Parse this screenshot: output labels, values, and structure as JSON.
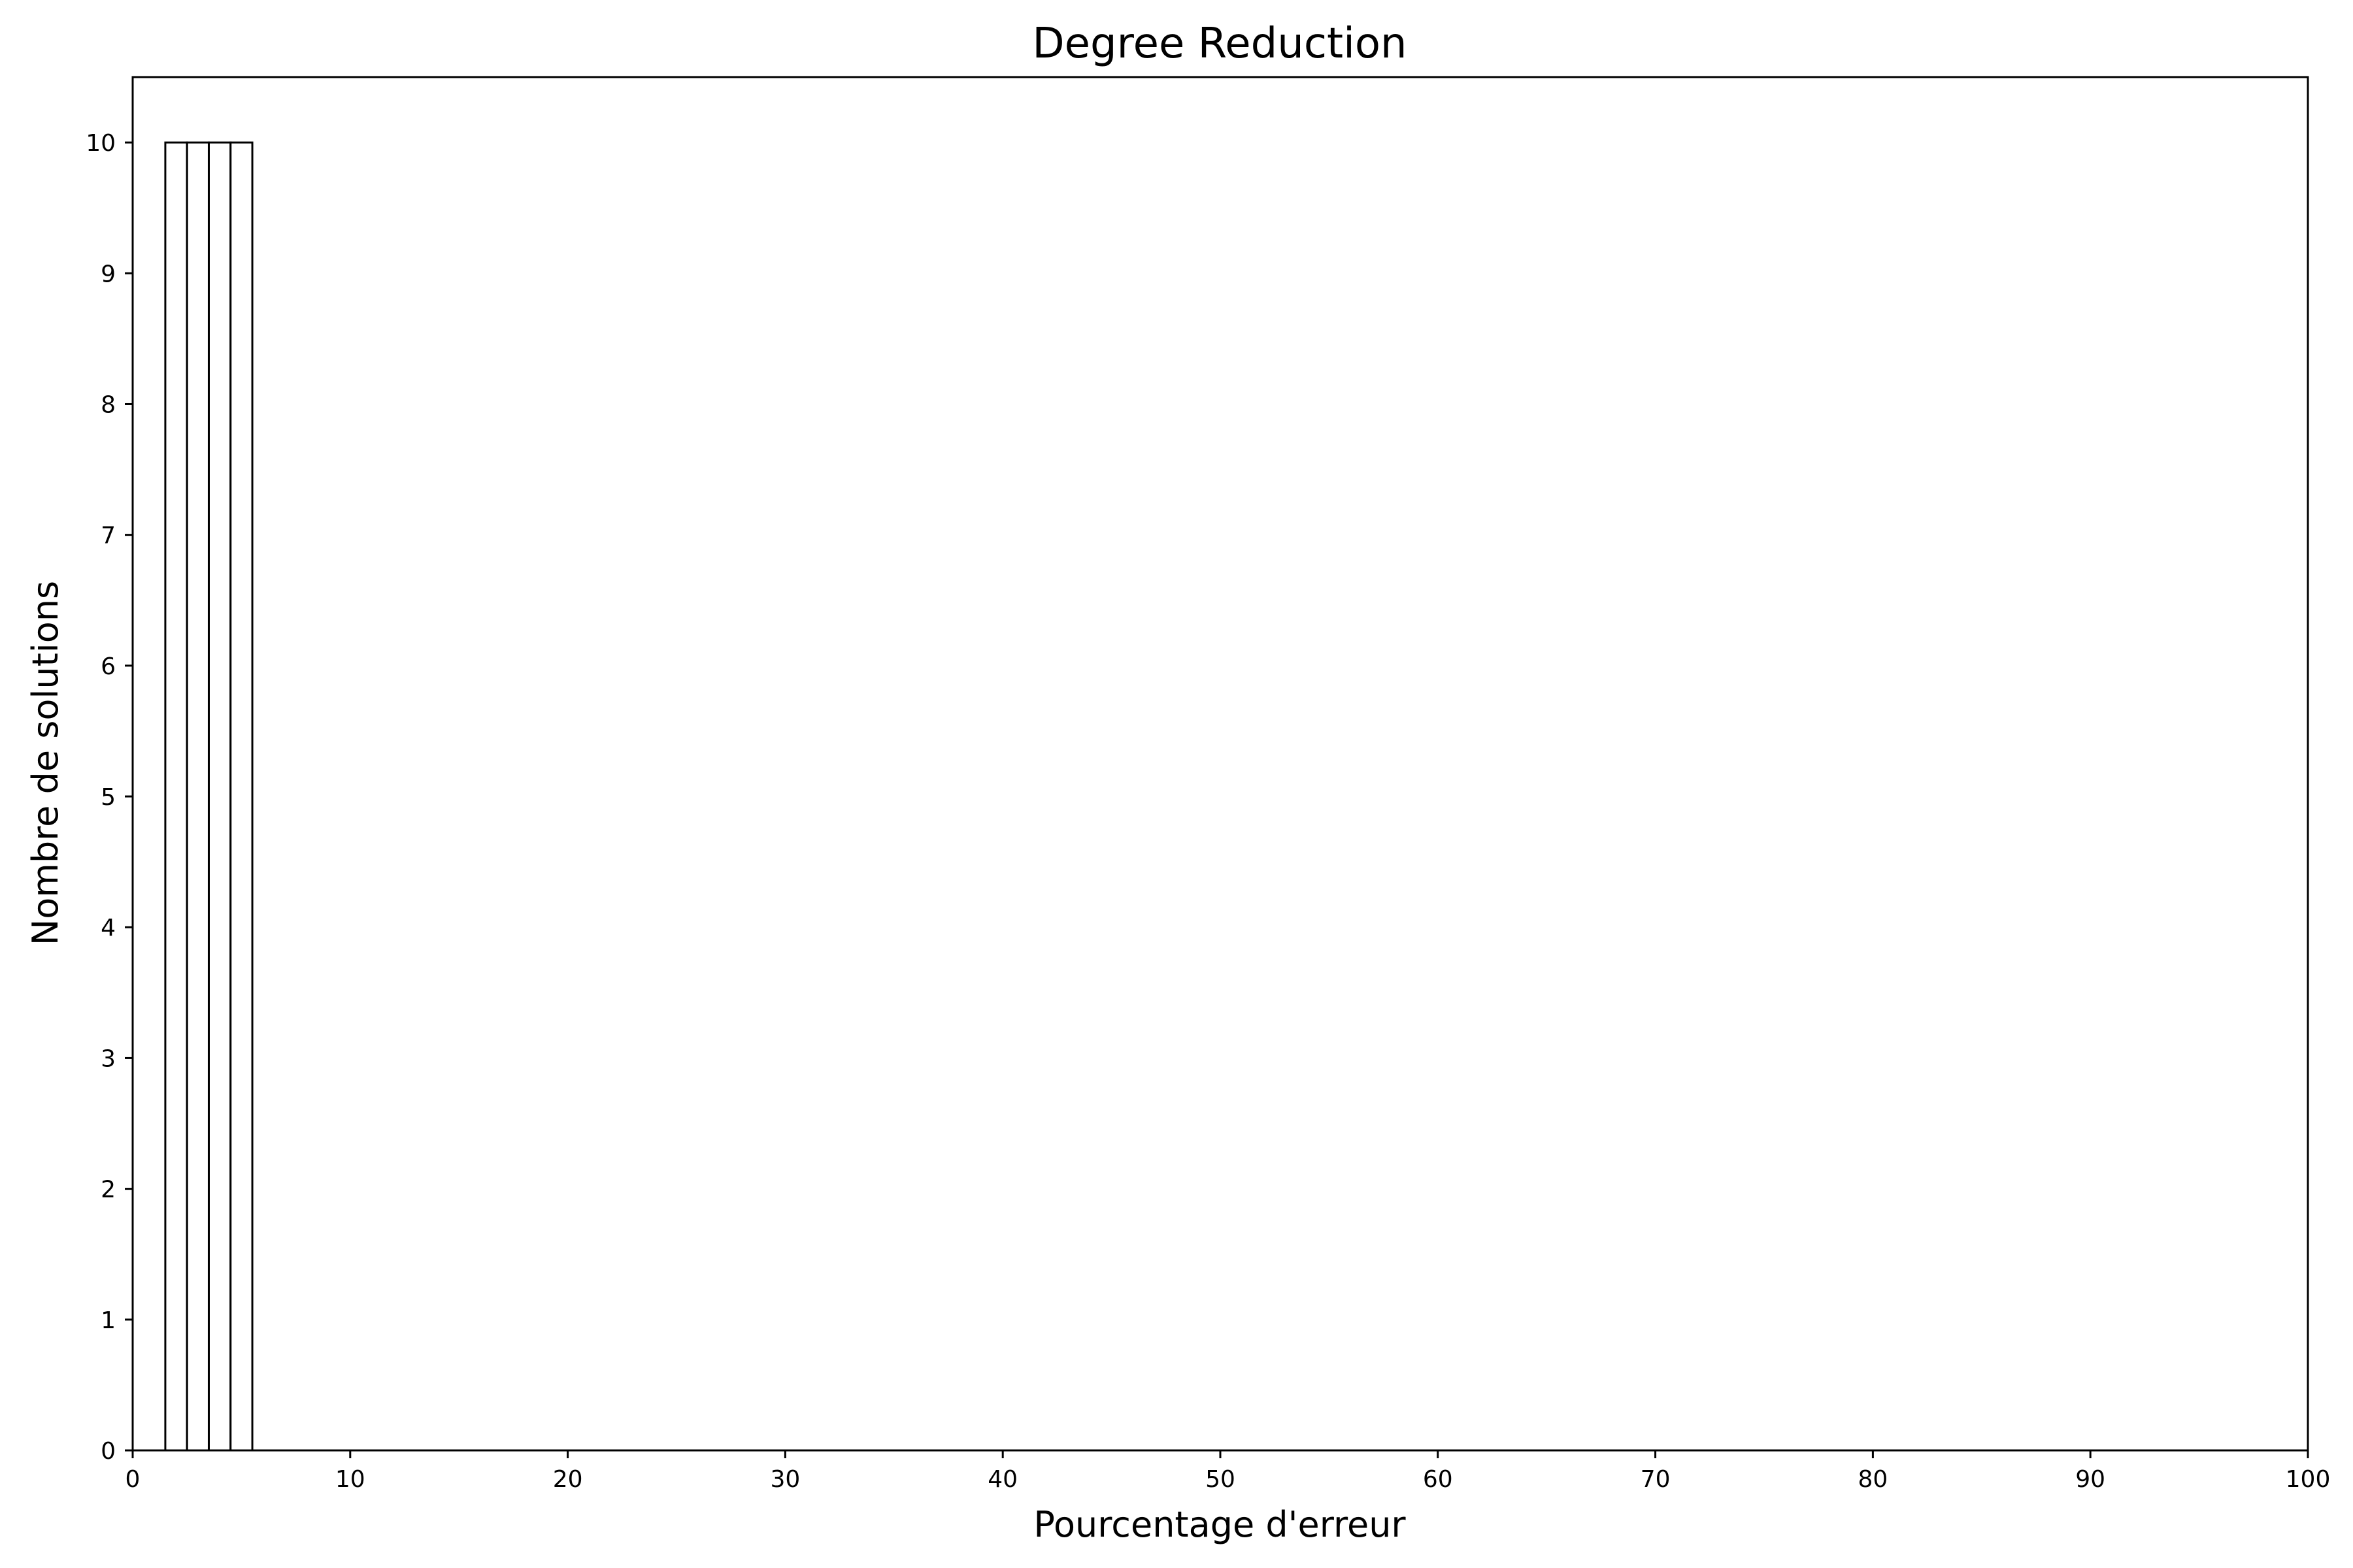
{
  "chart_data": {
    "type": "bar",
    "title": "Degree Reduction",
    "xlabel": "Pourcentage d'erreur",
    "ylabel": "Nombre de solutions",
    "xlim": [
      0,
      100
    ],
    "ylim": [
      0,
      10.5
    ],
    "xticks": [
      0,
      10,
      20,
      30,
      40,
      50,
      60,
      70,
      80,
      90,
      100
    ],
    "yticks": [
      0,
      1,
      2,
      3,
      4,
      5,
      6,
      7,
      8,
      9,
      10
    ],
    "grid": false,
    "bins": [
      {
        "x0": 1.5,
        "x1": 2.5,
        "value": 10
      },
      {
        "x0": 2.5,
        "x1": 3.5,
        "value": 10
      },
      {
        "x0": 3.5,
        "x1": 4.5,
        "value": 10
      },
      {
        "x0": 4.5,
        "x1": 5.5,
        "value": 10
      }
    ],
    "colors": {
      "bar_fill": "#ffffff",
      "bar_edge": "#000000",
      "axis": "#000000"
    }
  }
}
